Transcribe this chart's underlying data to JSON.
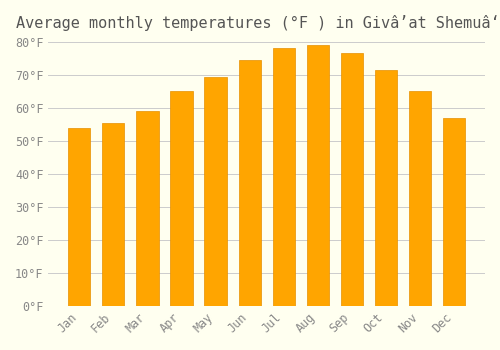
{
  "title": "Average monthly temperatures (°F ) in Givâʼat Shemuâʻel",
  "months": [
    "Jan",
    "Feb",
    "Mar",
    "Apr",
    "May",
    "Jun",
    "Jul",
    "Aug",
    "Sep",
    "Oct",
    "Nov",
    "Dec"
  ],
  "values": [
    54,
    55.5,
    59,
    65,
    69.5,
    74.5,
    78,
    79,
    76.5,
    71.5,
    65,
    57
  ],
  "bar_color": "#FFA500",
  "bar_edge_color": "#E69000",
  "ylim": [
    0,
    80
  ],
  "yticks": [
    0,
    10,
    20,
    30,
    40,
    50,
    60,
    70,
    80
  ],
  "ytick_labels": [
    "0°F",
    "10°F",
    "20°F",
    "30°F",
    "40°F",
    "50°F",
    "60°F",
    "70°F",
    "80°F"
  ],
  "bg_color": "#FFFFF0",
  "grid_color": "#CCCCCC",
  "title_fontsize": 11,
  "tick_fontsize": 8.5,
  "font_family": "monospace"
}
